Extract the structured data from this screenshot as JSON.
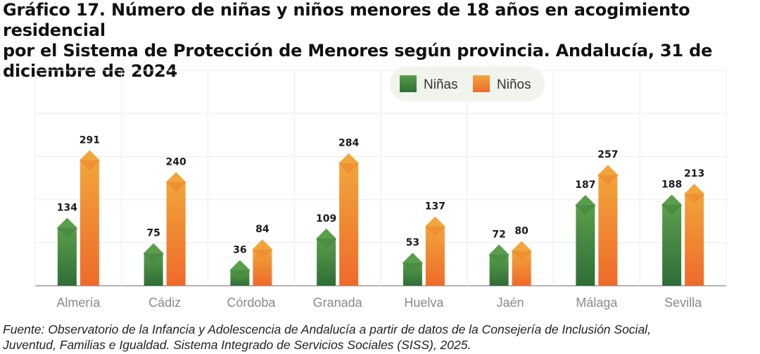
{
  "title_lines": [
    "Gráfico 17. Número de niñas y niños menores de 18 años en acogimiento residencial",
    "por el Sistema de Protección de Menores según provincia. Andalucía, 31 de",
    "diciembre de 2024"
  ],
  "source_lines": [
    "Fuente: Observatorio de la Infancia y Adolescencia de Andalucía a partir de datos de la Consejería de Inclusión Social,",
    "Juventud, Familias e Igualdad. Sistema Integrado de Servicios Sociales (SISS), 2025."
  ],
  "chart_data": {
    "type": "bar",
    "title": "Número de niñas y niños menores de 18 años en acogimiento residencial por el Sistema de Protección de Menores según provincia. Andalucía, 31 de diciembre de 2024",
    "xlabel": "",
    "ylabel": "",
    "categories": [
      "Almería",
      "Cádiz",
      "Córdoba",
      "Granada",
      "Huelva",
      "Jaén",
      "Málaga",
      "Sevilla"
    ],
    "series": [
      {
        "name": "Niñas",
        "values": [
          134,
          75,
          36,
          109,
          53,
          72,
          187,
          188
        ],
        "color_top": "#5a9e4b",
        "color_bottom": "#2f6e37"
      },
      {
        "name": "Niños",
        "values": [
          291,
          240,
          84,
          284,
          137,
          80,
          257,
          213
        ],
        "color_top": "#f2a53a",
        "color_bottom": "#ef6a2a"
      }
    ],
    "ylim": [
      0,
      500
    ],
    "grid": true,
    "data_labels": true,
    "legend_position": "top-right"
  }
}
